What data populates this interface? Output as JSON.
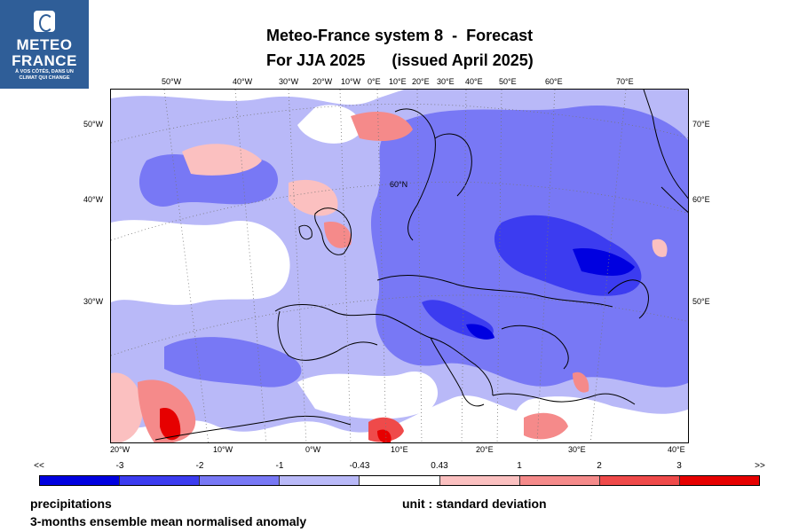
{
  "logo": {
    "line1": "METEO",
    "line2": "FRANCE",
    "tagline1": "À VOS CÔTÉS, DANS UN",
    "tagline2": "CLIMAT QUI CHANGE",
    "color": "#2f5e98"
  },
  "title": {
    "line1": "Meteo-France system 8  -  Forecast",
    "line2": "For JJA 2025      (issued April 2025)"
  },
  "map": {
    "projection_grid_label": "60°N",
    "top_axis": [
      "50°W",
      "40°W",
      "30°W",
      "20°W",
      "10°W",
      "0°E",
      "10°E",
      "20°E",
      "30°E",
      "40°E",
      "50°E",
      "60°E",
      "70°E"
    ],
    "bottom_axis": [
      "20°W",
      "10°W",
      "0°W",
      "10°E",
      "20°E",
      "30°E",
      "40°E"
    ],
    "left_axis": [
      "50°W",
      "40°W",
      "30°W"
    ],
    "right_axis": [
      "70°E",
      "60°E",
      "50°E"
    ],
    "dominant_signal": "negative anomaly over central and eastern Europe"
  },
  "colorbar": {
    "labels": [
      "<<",
      "-3",
      "-2",
      "-1",
      "-0.43",
      "0.43",
      "1",
      "2",
      "3",
      ">>"
    ],
    "colors": [
      "#0000e0",
      "#3c3cf0",
      "#7878f5",
      "#b9b9f8",
      "#ffffff",
      "#fbc0c0",
      "#f58a8a",
      "#ef4a4a",
      "#e60000"
    ]
  },
  "footer": {
    "variable": "precipitations",
    "description": "3-months ensemble mean normalised anomaly",
    "unit": "unit : standard deviation"
  }
}
